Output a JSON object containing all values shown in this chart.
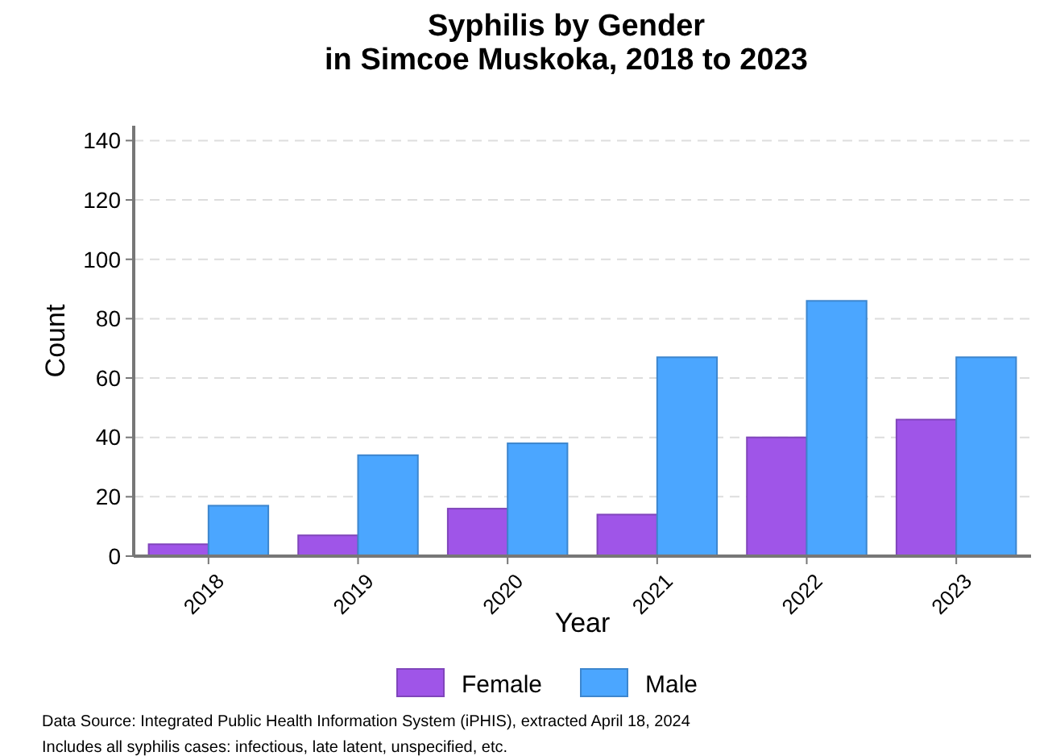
{
  "chart_data": {
    "type": "bar",
    "title": "Syphilis by Gender\nin Simcoe Muskoka, 2018 to 2023",
    "xlabel": "Year",
    "ylabel": "Count",
    "categories": [
      "2018",
      "2019",
      "2020",
      "2021",
      "2022",
      "2023"
    ],
    "series": [
      {
        "name": "Female",
        "color": "#9f55e8",
        "values": [
          4,
          7,
          16,
          14,
          40,
          46
        ]
      },
      {
        "name": "Male",
        "color": "#4ba6ff",
        "values": [
          17,
          34,
          38,
          67,
          86,
          67
        ]
      }
    ],
    "ylim": [
      0,
      145
    ],
    "yticks": [
      0,
      20,
      40,
      60,
      80,
      100,
      120,
      140
    ],
    "grid": "y",
    "legend": "bottom",
    "annotations": [
      "Data Source: Integrated Public Health Information System (iPHIS), extracted April 18, 2024",
      "Includes all syphilis cases: infectious, late latent, unspecified, etc."
    ]
  }
}
